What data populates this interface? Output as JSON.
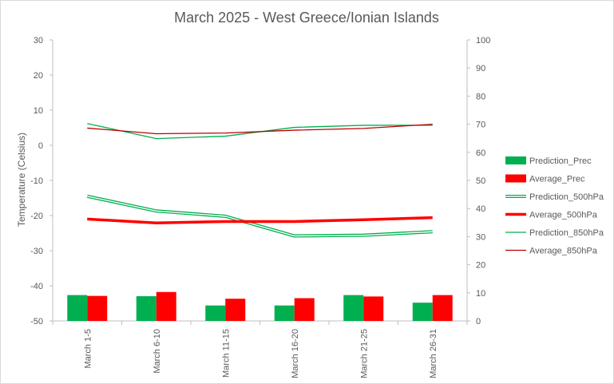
{
  "chart_data": {
    "type": "bar+line",
    "title": "March 2025 - West Greece/Ionian Islands",
    "categories": [
      "March 1-5",
      "March 6-10",
      "March 11-15",
      "March 16-20",
      "March 21-25",
      "March 26-31"
    ],
    "left_axis": {
      "label": "Temperature (Celsius)",
      "min": -50,
      "max": 30,
      "step": 10,
      "ticks": [
        "30",
        "20",
        "10",
        "0",
        "-10",
        "-20",
        "-30",
        "-40",
        "-50"
      ]
    },
    "right_axis": {
      "label": "",
      "min": 0,
      "max": 100,
      "step": 10,
      "ticks": [
        "100",
        "90",
        "80",
        "70",
        "60",
        "50",
        "40",
        "30",
        "20",
        "10",
        "0"
      ]
    },
    "grid": false,
    "legend_position": "right",
    "series": [
      {
        "name": "Prediction_Prec",
        "kind": "bar",
        "axis": "right",
        "color": "#00b050",
        "values": [
          9.2,
          8.8,
          5.5,
          5.5,
          9.2,
          6.5
        ]
      },
      {
        "name": "Average_Prec",
        "kind": "bar",
        "axis": "right",
        "color": "#ff0000",
        "values": [
          8.9,
          10.3,
          7.9,
          8.1,
          8.7,
          9.2
        ]
      },
      {
        "name": "Prediction_500hPa",
        "kind": "line-double",
        "axis": "left",
        "color": "#00b050",
        "values": [
          -14.5,
          -18.7,
          -20.2,
          -25.8,
          -25.6,
          -24.6
        ]
      },
      {
        "name": "Average_500hPa",
        "kind": "line-thick",
        "axis": "left",
        "color": "#ff0000",
        "values": [
          -21.0,
          -22.1,
          -21.7,
          -21.7,
          -21.2,
          -20.6
        ]
      },
      {
        "name": "Prediction_850hPa",
        "kind": "line",
        "axis": "left",
        "color": "#00b050",
        "values": [
          6.2,
          1.9,
          2.6,
          5.1,
          5.7,
          5.7
        ]
      },
      {
        "name": "Average_850hPa",
        "kind": "line",
        "axis": "left",
        "color": "#c00000",
        "values": [
          4.9,
          3.3,
          3.5,
          4.3,
          4.8,
          6.0
        ]
      }
    ]
  }
}
